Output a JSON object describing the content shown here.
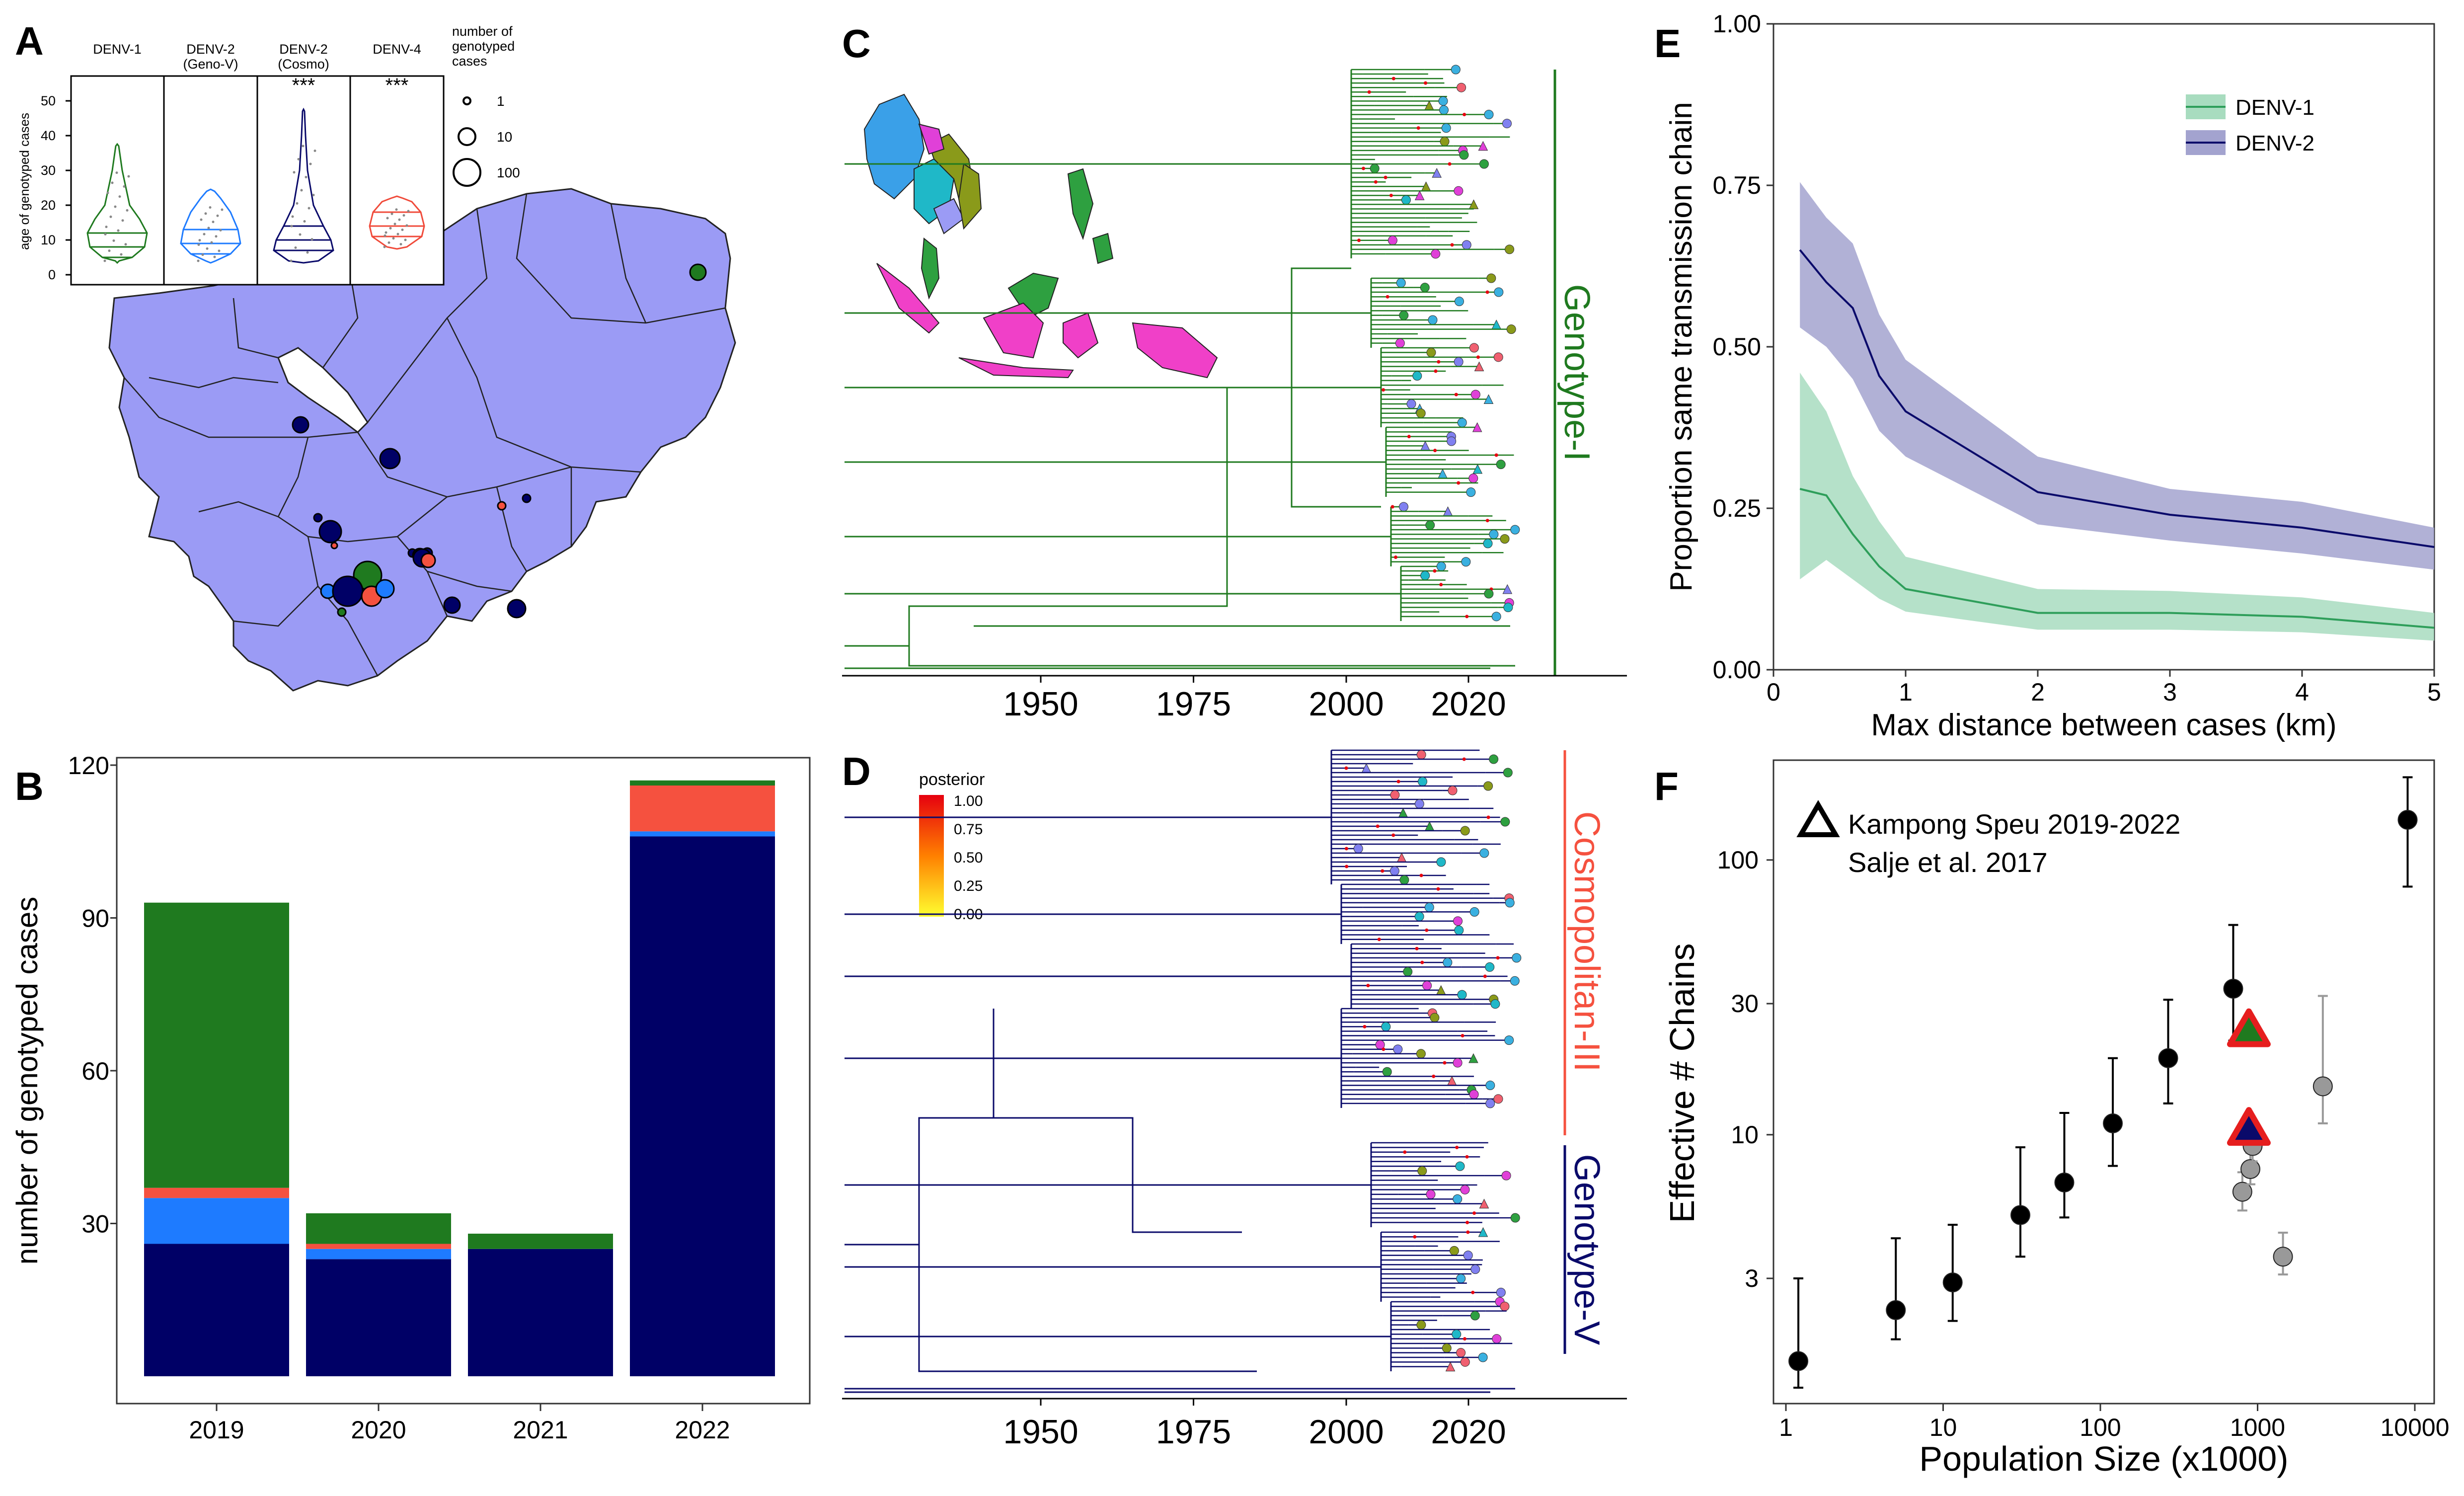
{
  "panels": {
    "A": {
      "letter": "A",
      "violin_titles": [
        [
          "DENV-1"
        ],
        [
          "DENV-2",
          "(Geno-V)"
        ],
        [
          "DENV-2",
          "(Cosmo)"
        ],
        [
          "DENV-4"
        ]
      ],
      "sig": [
        "",
        "",
        "***",
        "***"
      ],
      "colors": [
        "#1f7a1f",
        "#1e7bff",
        "#0a0a6a",
        "#f04a3a"
      ],
      "ylabel": "age of genotyped cases",
      "yticks": [
        0,
        10,
        20,
        30,
        40,
        50
      ],
      "size_legend_title": [
        "number of",
        "genotyped",
        "cases"
      ],
      "size_legend": [
        1,
        10,
        100
      ],
      "map_color": "#9b9bf5"
    },
    "B": {
      "letter": "B",
      "ylabel": "number of genotyped cases"
    },
    "C": {
      "letter": "C",
      "clade_label": "Genotype-I",
      "clade_color": "#1f7a1f",
      "xticks": [
        1950,
        1975,
        2000,
        2020
      ]
    },
    "D": {
      "letter": "D",
      "clade_labels": [
        "Cosmopolitan-III",
        "Genotype-V"
      ],
      "clade_colors": [
        "#f04a3a",
        "#0a0a6a"
      ],
      "xticks": [
        1950,
        1975,
        2000,
        2020
      ],
      "posterior_title": "posterior",
      "posterior_ticks": [
        "1.00",
        "0.75",
        "0.50",
        "0.25",
        "0.00"
      ]
    },
    "E": {
      "letter": "E"
    },
    "F": {
      "letter": "F",
      "legend_text": [
        "Kampong Speu 2019-2022",
        "Salje et al. 2017"
      ]
    }
  },
  "chart_data": [
    {
      "panel": "B",
      "type": "bar",
      "categories": [
        "2019",
        "2020",
        "2021",
        "2022"
      ],
      "series": [
        {
          "name": "DENV-2 (Cosmo)",
          "color": "#000066",
          "values": [
            26,
            23,
            25,
            106
          ]
        },
        {
          "name": "DENV-2 (Geno-V)",
          "color": "#1e7bff",
          "values": [
            9,
            2,
            0,
            1
          ]
        },
        {
          "name": "DENV-4",
          "color": "#f5513f",
          "values": [
            2,
            1,
            0,
            9
          ]
        },
        {
          "name": "DENV-1",
          "color": "#1f7a1f",
          "values": [
            56,
            6,
            3,
            1
          ]
        }
      ],
      "ylabel": "number of genotyped cases",
      "yticks": [
        30,
        60,
        90,
        120
      ],
      "ylim": [
        0,
        122
      ]
    },
    {
      "panel": "E",
      "type": "line",
      "xlabel": "Max distance between cases (km)",
      "ylabel": "Proportion same transmission chain",
      "xlim": [
        0,
        5
      ],
      "ylim": [
        0,
        1
      ],
      "xticks": [
        0,
        1,
        2,
        3,
        4,
        5
      ],
      "yticks": [
        "0.00",
        "0.25",
        "0.50",
        "0.75",
        "1.00"
      ],
      "legend_position": "top-right",
      "series": [
        {
          "name": "DENV-1",
          "color": "#2e9e5a",
          "fill": "#a8dcbf",
          "x": [
            0.2,
            0.4,
            0.6,
            0.8,
            1,
            2,
            3,
            4,
            5
          ],
          "y": [
            0.28,
            0.27,
            0.21,
            0.16,
            0.125,
            0.088,
            0.088,
            0.082,
            0.065
          ],
          "lower": [
            0.14,
            0.17,
            0.14,
            0.11,
            0.09,
            0.062,
            0.062,
            0.058,
            0.045
          ],
          "upper": [
            0.46,
            0.4,
            0.3,
            0.23,
            0.175,
            0.125,
            0.122,
            0.112,
            0.088
          ]
        },
        {
          "name": "DENV-2",
          "color": "#0a0a6a",
          "fill": "#a3a3cf",
          "x": [
            0.2,
            0.4,
            0.6,
            0.8,
            1,
            2,
            3,
            4,
            5
          ],
          "y": [
            0.65,
            0.6,
            0.56,
            0.455,
            0.4,
            0.275,
            0.24,
            0.22,
            0.19
          ],
          "lower": [
            0.53,
            0.5,
            0.45,
            0.37,
            0.33,
            0.225,
            0.2,
            0.18,
            0.155
          ],
          "upper": [
            0.755,
            0.7,
            0.66,
            0.55,
            0.48,
            0.33,
            0.28,
            0.26,
            0.22
          ]
        }
      ]
    },
    {
      "panel": "F",
      "type": "scatter",
      "xlabel": "Population Size (x1000)",
      "ylabel": "Effective # Chains",
      "xscale": "log",
      "yscale": "log",
      "xticks": [
        1,
        10,
        100,
        1000,
        10000
      ],
      "yticks": [
        3,
        10,
        30,
        100
      ],
      "series": [
        {
          "name": "black",
          "color": "#000000",
          "points": [
            [
              1.2,
              1.5,
              1.2,
              3
            ],
            [
              5,
              2.3,
              1.8,
              4.2
            ],
            [
              11.5,
              2.9,
              2.1,
              4.7
            ],
            [
              31,
              5.1,
              3.6,
              9
            ],
            [
              59,
              6.7,
              5,
              12
            ],
            [
              120,
              11,
              7.7,
              19
            ],
            [
              270,
              19,
              13,
              31
            ],
            [
              700,
              34,
              22,
              58
            ],
            [
              9000,
              140,
              80,
              200
            ]
          ]
        },
        {
          "name": "grey",
          "color": "#999999",
          "points": [
            [
              800,
              6.2,
              5.3,
              7.3
            ],
            [
              900,
              7.5,
              6.6,
              8.6
            ],
            [
              930,
              9.1,
              8,
              10.5
            ],
            [
              1450,
              3.6,
              3.1,
              4.4
            ],
            [
              2600,
              15,
              11,
              32
            ]
          ]
        },
        {
          "name": "Kampong Speu 2019-2022",
          "points": [
            [
              880,
              24,
              "#1f7a1f"
            ],
            [
              880,
              10.5,
              "#0a0a6a"
            ]
          ]
        }
      ]
    }
  ]
}
